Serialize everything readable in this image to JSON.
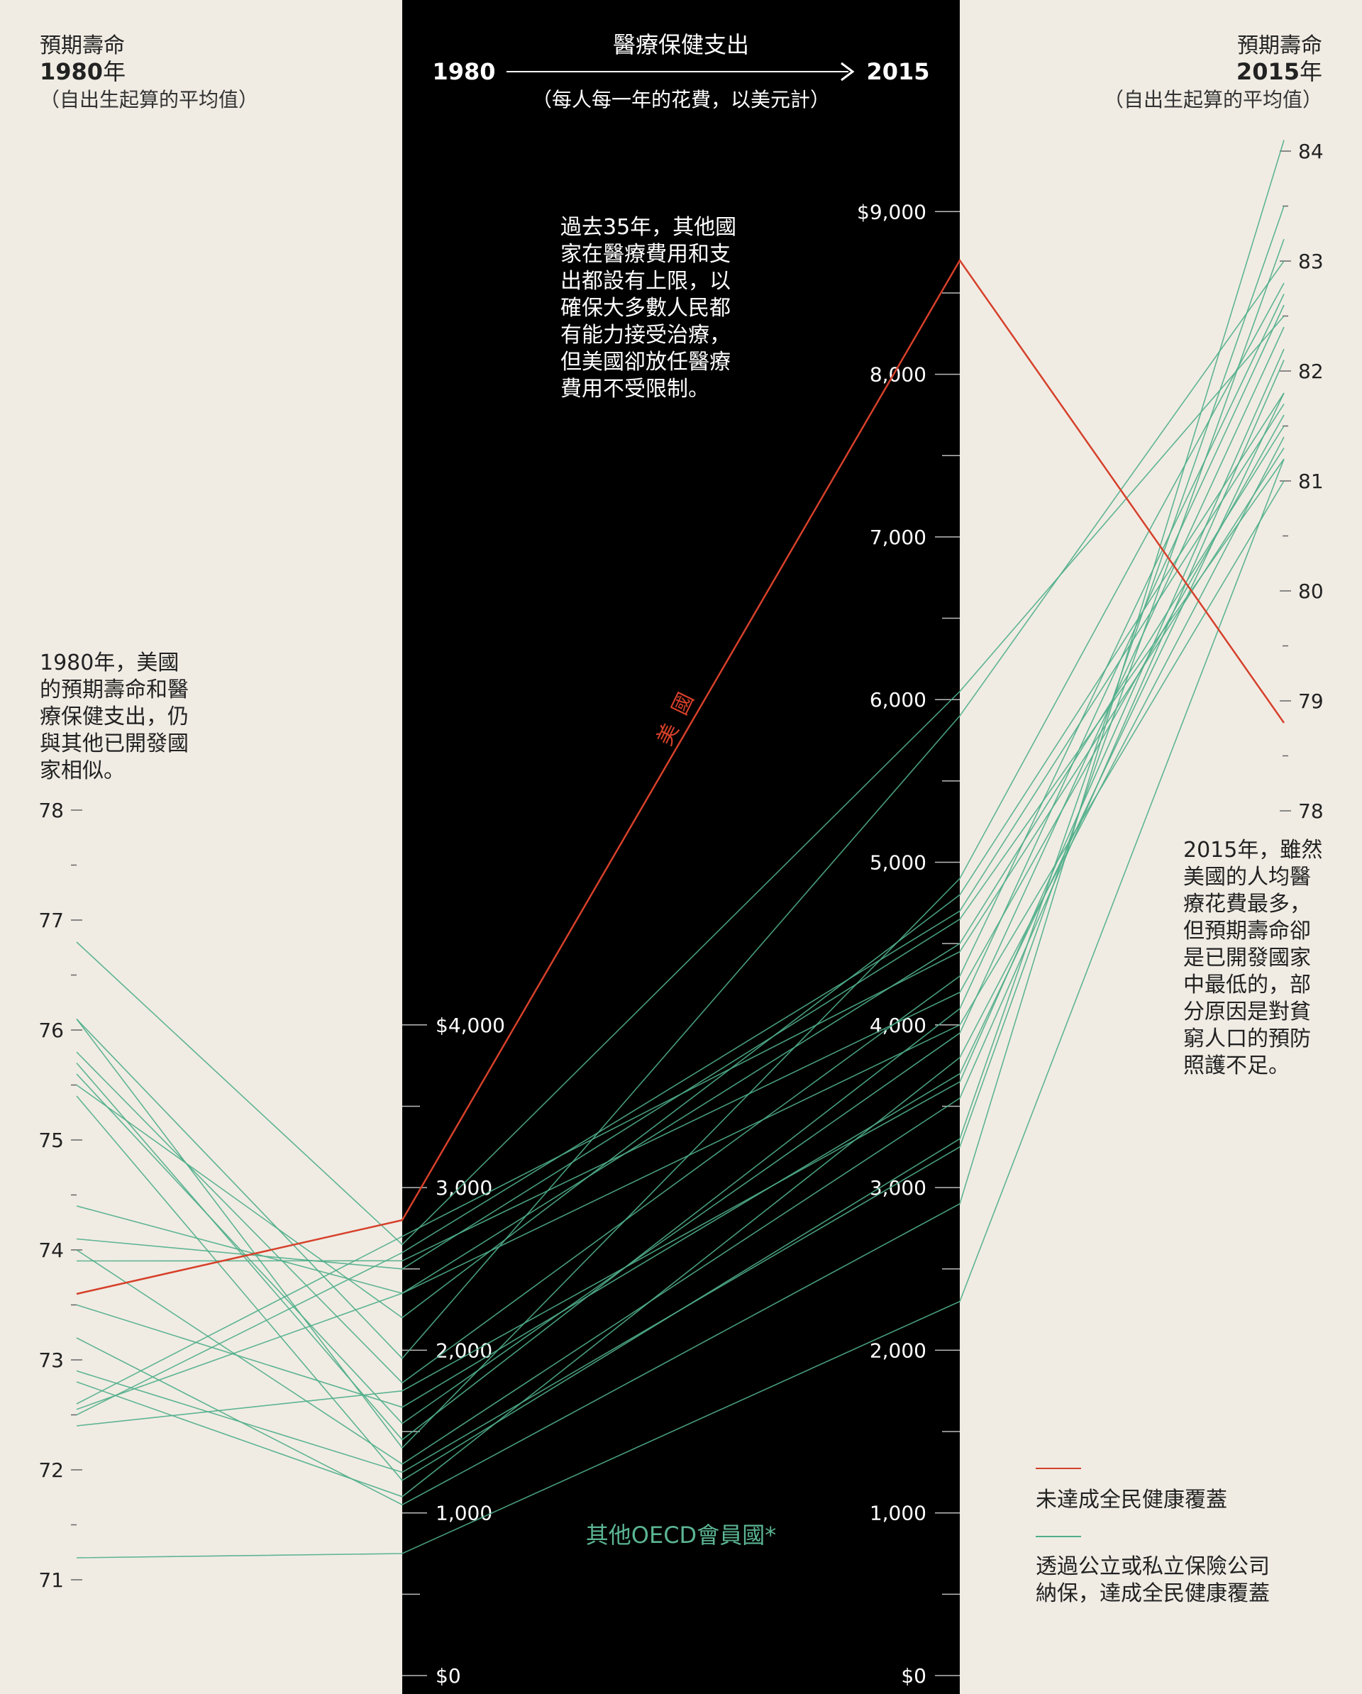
{
  "header": {
    "left_title": "預期壽命",
    "left_year": "1980",
    "left_year_suffix": "年",
    "left_sub": "（自出生起算的平均值）",
    "center_title": "醫療保健支出",
    "center_from": "1980",
    "center_to": "2015",
    "center_sub": "（每人每一年的花費，以美元計）",
    "right_title": "預期壽命",
    "right_year": "2015",
    "right_year_suffix": "年",
    "right_sub": "（自出生起算的平均值）"
  },
  "annotations": {
    "center_note": [
      "過去35年，其他國",
      "家在醫療費用和支",
      "出都設有上限，以",
      "確保大多數人民都",
      "有能力接受治療，",
      "但美國卻放任醫療",
      "費用不受限制。"
    ],
    "left_note": [
      "1980年，美國",
      "的預期壽命和醫",
      "療保健支出，仍",
      "與其他已開發國",
      "家相似。"
    ],
    "right_note": [
      "2015年，雖然",
      "美國的人均醫",
      "療花費最多，",
      "但預期壽命卻",
      "是已開發國家",
      "中最低的，部",
      "分原因是對貧",
      "窮人口的預防",
      "照護不足。"
    ],
    "us_label": "美國",
    "oecd_label": "其他OECD會員國*"
  },
  "legend": {
    "red_label": "未達成全民健康覆蓋",
    "green_label_line1": "透過公立或私立保險公司",
    "green_label_line2": "納保，達成全民健康覆蓋"
  },
  "colors": {
    "background": "#f0ece4",
    "panel": "#000000",
    "us": "#d6402a",
    "oecd": "#4fae89",
    "oecd_label": "#5bb592",
    "text": "#222222"
  },
  "chart_data": {
    "type": "parallel-coordinates",
    "axes": [
      {
        "name": "預期壽命 1980年",
        "range": [
          71,
          78
        ],
        "ticks": [
          "71",
          "72",
          "73",
          "74",
          "75",
          "76",
          "77",
          "78"
        ]
      },
      {
        "name": "醫療保健支出 1980",
        "range": [
          0,
          4000
        ],
        "ticks": [
          "$0",
          "1,000",
          "2,000",
          "3,000",
          "$4,000"
        ]
      },
      {
        "name": "醫療保健支出 2015",
        "range": [
          0,
          9000
        ],
        "ticks": [
          "$0",
          "1,000",
          "2,000",
          "3,000",
          "4,000",
          "5,000",
          "6,000",
          "7,000",
          "8,000",
          "$9,000"
        ]
      },
      {
        "name": "預期壽命 2015年",
        "range": [
          78,
          84
        ],
        "ticks": [
          "78",
          "79",
          "80",
          "81",
          "82",
          "83",
          "84"
        ]
      }
    ],
    "series": [
      {
        "name": "美國",
        "group": "us",
        "values": [
          73.6,
          2800,
          8700,
          78.8
        ]
      },
      {
        "group": "oecd",
        "values": [
          76.8,
          2650,
          6050,
          82.5
        ]
      },
      {
        "group": "oecd",
        "values": [
          76.1,
          1950,
          5900,
          83.0
        ]
      },
      {
        "group": "oecd",
        "values": [
          76.1,
          1400,
          4900,
          82.8
        ]
      },
      {
        "group": "oecd",
        "values": [
          75.8,
          1800,
          4300,
          82.7
        ]
      },
      {
        "group": "oecd",
        "values": [
          75.7,
          1450,
          4100,
          82.6
        ]
      },
      {
        "group": "oecd",
        "values": [
          75.6,
          1550,
          3950,
          82.4
        ]
      },
      {
        "group": "oecd",
        "values": [
          75.5,
          2200,
          4800,
          81.8
        ]
      },
      {
        "group": "oecd",
        "values": [
          75.4,
          1200,
          3300,
          83.5
        ]
      },
      {
        "group": "oecd",
        "values": [
          74.4,
          2350,
          4500,
          81.5
        ]
      },
      {
        "group": "oecd",
        "values": [
          74.1,
          2500,
          4650,
          81.2
        ]
      },
      {
        "group": "oecd",
        "values": [
          74.0,
          1300,
          3550,
          82.1
        ]
      },
      {
        "group": "oecd",
        "values": [
          73.9,
          2550,
          4200,
          81.6
        ]
      },
      {
        "group": "oecd",
        "values": [
          73.5,
          1650,
          3700,
          81.8
        ]
      },
      {
        "group": "oecd",
        "values": [
          73.2,
          1050,
          2900,
          84.1
        ]
      },
      {
        "group": "oecd",
        "values": [
          72.9,
          1250,
          3250,
          83.2
        ]
      },
      {
        "group": "oecd",
        "values": [
          72.8,
          1100,
          3800,
          81.4
        ]
      },
      {
        "group": "oecd",
        "values": [
          72.6,
          2700,
          4450,
          81.3
        ]
      },
      {
        "group": "oecd",
        "values": [
          72.55,
          2350,
          4000,
          81.0
        ]
      },
      {
        "group": "oecd",
        "values": [
          72.5,
          2600,
          4700,
          81.7
        ]
      },
      {
        "group": "oecd",
        "values": [
          72.4,
          1750,
          3650,
          82.2
        ]
      },
      {
        "group": "oecd",
        "values": [
          71.2,
          750,
          2300,
          81.2
        ]
      }
    ]
  }
}
